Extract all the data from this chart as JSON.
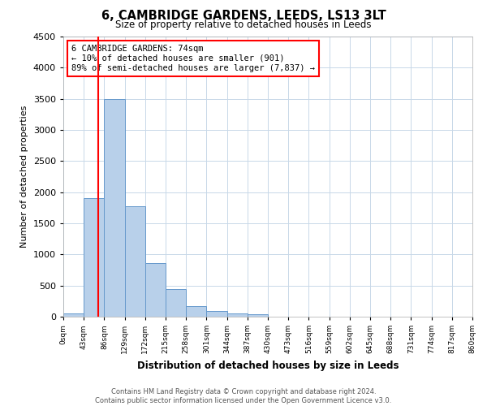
{
  "title": "6, CAMBRIDGE GARDENS, LEEDS, LS13 3LT",
  "subtitle": "Size of property relative to detached houses in Leeds",
  "xlabel": "Distribution of detached houses by size in Leeds",
  "ylabel": "Number of detached properties",
  "bin_labels": [
    "0sqm",
    "43sqm",
    "86sqm",
    "129sqm",
    "172sqm",
    "215sqm",
    "258sqm",
    "301sqm",
    "344sqm",
    "387sqm",
    "430sqm",
    "473sqm",
    "516sqm",
    "559sqm",
    "602sqm",
    "645sqm",
    "688sqm",
    "731sqm",
    "774sqm",
    "817sqm",
    "860sqm"
  ],
  "bar_values": [
    50,
    1900,
    3500,
    1780,
    860,
    450,
    175,
    95,
    50,
    40,
    0,
    0,
    0,
    0,
    0,
    0,
    0,
    0,
    0,
    0
  ],
  "bar_color": "#b8d0ea",
  "bar_edge_color": "#6699cc",
  "ylim": [
    0,
    4500
  ],
  "yticks": [
    0,
    500,
    1000,
    1500,
    2000,
    2500,
    3000,
    3500,
    4000,
    4500
  ],
  "property_size": 74,
  "bin_width": 43,
  "annotation_title": "6 CAMBRIDGE GARDENS: 74sqm",
  "annotation_line1": "← 10% of detached houses are smaller (901)",
  "annotation_line2": "89% of semi-detached houses are larger (7,837) →",
  "footer_line1": "Contains HM Land Registry data © Crown copyright and database right 2024.",
  "footer_line2": "Contains public sector information licensed under the Open Government Licence v3.0.",
  "background_color": "#ffffff",
  "grid_color": "#c8d8e8"
}
